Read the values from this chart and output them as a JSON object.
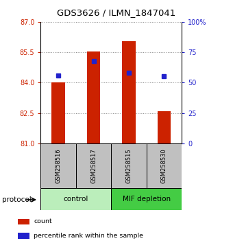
{
  "title": "GDS3626 / ILMN_1847041",
  "samples": [
    "GSM258516",
    "GSM258517",
    "GSM258515",
    "GSM258530"
  ],
  "bar_bottoms": [
    81,
    81,
    81,
    81
  ],
  "bar_tops": [
    84.0,
    85.55,
    86.05,
    82.6
  ],
  "percentile_values": [
    84.35,
    85.05,
    84.48,
    84.32
  ],
  "ylim_left": [
    81,
    87
  ],
  "ylim_right": [
    0,
    100
  ],
  "yticks_left": [
    81,
    82.5,
    84,
    85.5,
    87
  ],
  "yticks_right": [
    0,
    25,
    50,
    75,
    100
  ],
  "ytick_labels_right": [
    "0",
    "25",
    "50",
    "75",
    "100%"
  ],
  "bar_color": "#cc2200",
  "dot_color": "#2222cc",
  "bar_width": 0.38,
  "groups": [
    {
      "label": "control",
      "samples": [
        0,
        1
      ],
      "color": "#bbeebb"
    },
    {
      "label": "MIF depletion",
      "samples": [
        2,
        3
      ],
      "color": "#44cc44"
    }
  ],
  "protocol_label": "protocol",
  "legend_items": [
    {
      "color": "#cc2200",
      "label": "count"
    },
    {
      "color": "#2222cc",
      "label": "percentile rank within the sample"
    }
  ],
  "grid_color": "#888888",
  "sample_box_color": "#c0c0c0",
  "left_tick_color": "#cc2200",
  "right_tick_color": "#2222cc"
}
